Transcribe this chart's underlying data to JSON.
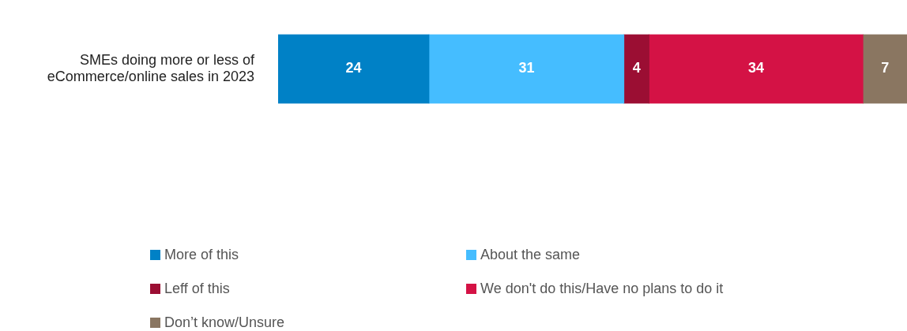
{
  "chart_data": {
    "type": "bar",
    "orientation": "horizontal",
    "stacked": true,
    "categories": [
      "SMEs doing more or less of eCommerce/online sales in 2023"
    ],
    "series": [
      {
        "name": "More of this",
        "color": "#0081c6",
        "values": [
          24
        ]
      },
      {
        "name": "About the same",
        "color": "#45bdff",
        "values": [
          31
        ]
      },
      {
        "name": "Leff of this",
        "color": "#9b0e33",
        "values": [
          4
        ]
      },
      {
        "name": "We don't do this/Have no plans to do it",
        "color": "#d41245",
        "values": [
          34
        ]
      },
      {
        "name": "Don’t know/Unsure",
        "color": "#8a7661",
        "values": [
          7
        ]
      }
    ],
    "data_labels": true,
    "legend": "bottom",
    "tick_labels": "y"
  }
}
